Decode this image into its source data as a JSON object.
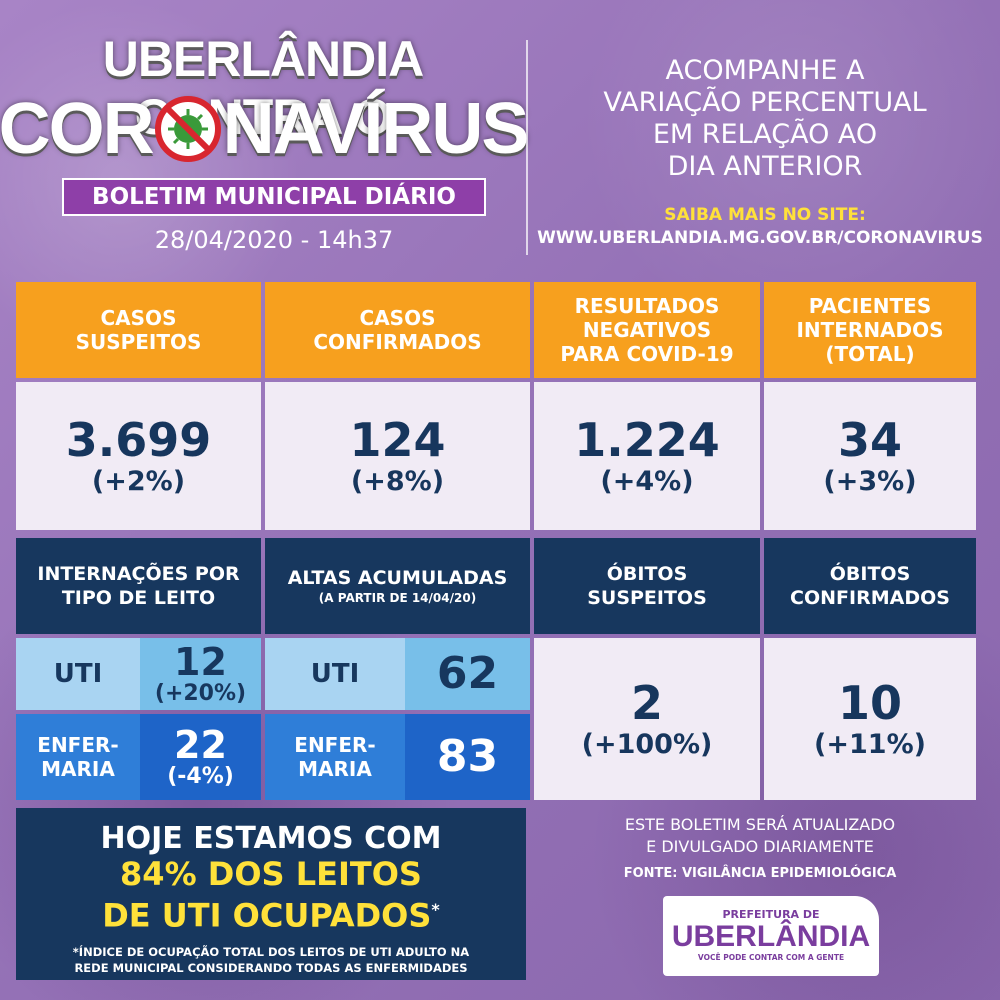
{
  "header": {
    "title_line1": "UBERLÂNDIA CONTRA O",
    "title_line2_start": "COR",
    "title_line2_end": "NAVÍRUS",
    "badge": "BOLETIM MUNICIPAL DIÁRIO",
    "date": "28/04/2020 - 14h37",
    "right_line1": "ACOMPANHE A",
    "right_line2": "VARIAÇÃO PERCENTUAL",
    "right_line3": "EM RELAÇÃO AO",
    "right_line4": "DIA ANTERIOR",
    "saiba": "SAIBA MAIS NO SITE:",
    "site": "WWW.UBERLANDIA.MG.GOV.BR/CORONAVIRUS"
  },
  "top_cards": [
    {
      "label_l1": "CASOS",
      "label_l2": "SUSPEITOS",
      "label_l3": "",
      "value": "3.699",
      "change": "(+2%)"
    },
    {
      "label_l1": "CASOS",
      "label_l2": "CONFIRMADOS",
      "label_l3": "",
      "value": "124",
      "change": "(+8%)"
    },
    {
      "label_l1": "RESULTADOS",
      "label_l2": "NEGATIVOS",
      "label_l3": "PARA COVID-19",
      "value": "1.224",
      "change": "(+4%)"
    },
    {
      "label_l1": "PACIENTES",
      "label_l2": "INTERNADOS",
      "label_l3": "(TOTAL)",
      "value": "34",
      "change": "(+3%)"
    }
  ],
  "internacoes": {
    "label_l1": "INTERNAÇÕES POR",
    "label_l2": "TIPO DE LEITO",
    "uti_label": "UTI",
    "uti_value": "12",
    "uti_change": "(+20%)",
    "enf_label_l1": "ENFER-",
    "enf_label_l2": "MARIA",
    "enf_value": "22",
    "enf_change": "(-4%)"
  },
  "altas": {
    "label": "ALTAS ACUMULADAS",
    "sublabel": "(A PARTIR DE 14/04/20)",
    "uti_label": "UTI",
    "uti_value": "62",
    "enf_label_l1": "ENFER-",
    "enf_label_l2": "MARIA",
    "enf_value": "83"
  },
  "obitos_suspeitos": {
    "label_l1": "ÓBITOS",
    "label_l2": "SUSPEITOS",
    "value": "2",
    "change": "(+100%)"
  },
  "obitos_confirmados": {
    "label_l1": "ÓBITOS",
    "label_l2": "CONFIRMADOS",
    "value": "10",
    "change": "(+11%)"
  },
  "occupancy": {
    "line1": "HOJE ESTAMOS COM",
    "line2": "84% DOS LEITOS",
    "line3": "DE UTI OCUPADOS",
    "asterisk": "*",
    "note_l1": "*ÍNDICE DE OCUPAÇÃO TOTAL DOS LEITOS DE UTI ADULTO NA",
    "note_l2": "REDE MUNICIPAL CONSIDERANDO TODAS AS ENFERMIDADES"
  },
  "footer": {
    "update_l1": "ESTE BOLETIM SERÁ ATUALIZADO",
    "update_l2": "E DIVULGADO DIARIAMENTE",
    "fonte": "FONTE: VIGILÂNCIA EPIDEMIOLÓGICA",
    "logo_pref": "PREFEITURA DE",
    "logo_city": "UBERLÂNDIA",
    "logo_tag": "VOCÊ PODE CONTAR COM A GENTE"
  },
  "colors": {
    "orange": "#f7a01e",
    "navy": "#17375e",
    "purple": "#9c79bb",
    "yellow": "#ffe13a"
  }
}
